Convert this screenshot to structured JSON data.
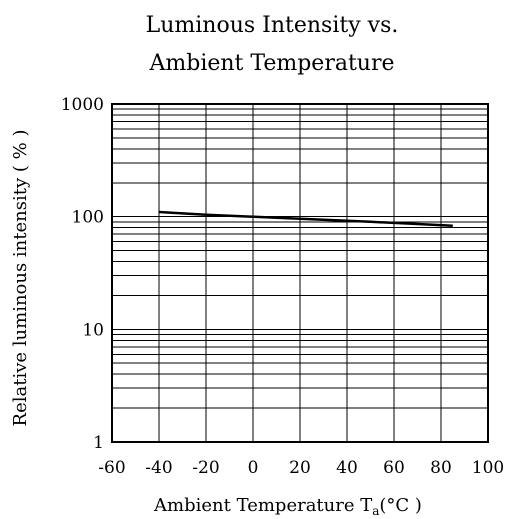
{
  "chart_data": {
    "type": "line",
    "title_lines": [
      "Luminous Intensity vs.",
      "Ambient Temperature"
    ],
    "xlabel": "Ambient Temperature T",
    "xlabel_sub": "a",
    "xlabel_unit": "(°C )",
    "ylabel": "Relative luminous intensity ( % )",
    "xlim": [
      -60,
      100
    ],
    "ylim": [
      1,
      1000
    ],
    "yscale": "log",
    "x_ticks": [
      -60,
      -40,
      -20,
      0,
      20,
      40,
      60,
      80,
      100
    ],
    "y_ticks": [
      1,
      10,
      100,
      1000
    ],
    "grid": true,
    "series": [
      {
        "x": [
          -40,
          -30,
          -20,
          -10,
          0,
          10,
          20,
          30,
          40,
          50,
          60,
          70,
          85
        ],
        "values": [
          110,
          107,
          104,
          102,
          100,
          98,
          96,
          94,
          92,
          90,
          88,
          86,
          83
        ]
      }
    ]
  }
}
